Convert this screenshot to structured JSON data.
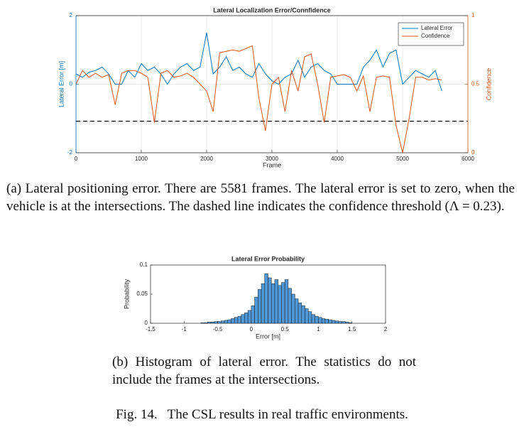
{
  "chart_data": [
    {
      "type": "line",
      "title": "Lateral Localization Error/Connfidence",
      "xlabel": "Frame",
      "ylabel": "Lateral Error [m]",
      "y2label": "Confidence",
      "xlim": [
        0,
        6000
      ],
      "xticks": [
        0,
        1000,
        2000,
        3000,
        4000,
        5000,
        6000
      ],
      "ylim": [
        -2,
        2
      ],
      "yticks": [
        -2,
        0,
        2
      ],
      "y2lim": [
        0,
        1
      ],
      "y2ticks": [
        0,
        0.5,
        1
      ],
      "grid": true,
      "legend": "northeast",
      "threshold": 0.23,
      "x": [
        0,
        100,
        200,
        300,
        400,
        500,
        600,
        700,
        800,
        900,
        1000,
        1100,
        1200,
        1300,
        1400,
        1500,
        1600,
        1700,
        1800,
        1900,
        2000,
        2100,
        2200,
        2300,
        2400,
        2500,
        2600,
        2700,
        2800,
        2900,
        3000,
        3100,
        3200,
        3300,
        3400,
        3500,
        3600,
        3700,
        3800,
        3900,
        4000,
        4100,
        4200,
        4300,
        4400,
        4500,
        4600,
        4700,
        4800,
        4900,
        5000,
        5100,
        5200,
        5300,
        5400,
        5500,
        5600
      ],
      "series": [
        {
          "name": "Lateral Error",
          "color": "#0072bd",
          "values": [
            0.3,
            0.2,
            0.35,
            0.4,
            0.5,
            0.3,
            0,
            0,
            0.4,
            0.2,
            0.6,
            0.4,
            0.5,
            0.3,
            0,
            0.3,
            0.5,
            0.6,
            0.4,
            0.5,
            1.5,
            0.3,
            0.5,
            0.8,
            0.4,
            0.5,
            0.3,
            0.2,
            0.6,
            0.3,
            0.1,
            0,
            0.2,
            0.3,
            0.7,
            0.2,
            0.5,
            0.6,
            0.4,
            0.3,
            0,
            0,
            0,
            0,
            0.5,
            0.7,
            1.0,
            0.5,
            0.9,
            1.0,
            0,
            0.2,
            0.4,
            0.3,
            0.2,
            0.4,
            -0.2
          ]
        },
        {
          "name": "Confidence",
          "color": "#d95319",
          "axis": "y2",
          "values": [
            0.5,
            0.6,
            0.55,
            0.58,
            0.55,
            0.57,
            0.35,
            0.58,
            0.6,
            0.6,
            0.58,
            0.55,
            0.22,
            0.58,
            0.6,
            0.55,
            0.56,
            0.58,
            0.55,
            0.5,
            0.45,
            0.3,
            0.73,
            0.74,
            0.75,
            0.74,
            0.76,
            0.78,
            0.4,
            0.16,
            0.5,
            0.55,
            0.3,
            0.6,
            0.45,
            0.7,
            0.72,
            0.5,
            0.22,
            0.55,
            0.56,
            0.57,
            0.55,
            0.45,
            0.56,
            0.3,
            0.55,
            0.56,
            0.55,
            0.2,
            0.0,
            0.25,
            0.55,
            0.55,
            0.53,
            0.54,
            0.53
          ]
        }
      ]
    },
    {
      "type": "histogram",
      "title": "Lateral Error Probability",
      "xlabel": "Error [m]",
      "ylabel": "Probability",
      "color": "#4f97d6",
      "xlim": [
        -1.5,
        2
      ],
      "xticks": [
        -1.5,
        -1,
        -0.5,
        0,
        0.5,
        1,
        1.5,
        2
      ],
      "ylim": [
        0,
        0.1
      ],
      "yticks": [
        0,
        0.05,
        0.1
      ],
      "bins": [
        -0.75,
        -0.7,
        -0.65,
        -0.6,
        -0.55,
        -0.5,
        -0.45,
        -0.4,
        -0.35,
        -0.3,
        -0.25,
        -0.2,
        -0.15,
        -0.1,
        -0.05,
        0,
        0.05,
        0.1,
        0.15,
        0.2,
        0.25,
        0.3,
        0.35,
        0.4,
        0.45,
        0.5,
        0.55,
        0.6,
        0.65,
        0.7,
        0.75,
        0.8,
        0.85,
        0.9,
        0.95,
        1,
        1.05,
        1.1,
        1.15,
        1.2,
        1.25,
        1.3,
        1.35,
        1.4,
        1.45,
        1.5
      ],
      "values": [
        0.001,
        0.001,
        0.002,
        0.002,
        0.003,
        0.003,
        0.004,
        0.005,
        0.006,
        0.008,
        0.01,
        0.012,
        0.015,
        0.018,
        0.022,
        0.03,
        0.045,
        0.058,
        0.068,
        0.085,
        0.078,
        0.068,
        0.075,
        0.065,
        0.07,
        0.075,
        0.06,
        0.05,
        0.042,
        0.035,
        0.03,
        0.025,
        0.02,
        0.015,
        0.012,
        0.01,
        0.008,
        0.007,
        0.006,
        0.005,
        0.004,
        0.003,
        0.003,
        0.002,
        0.001
      ]
    }
  ],
  "captions": {
    "a": "(a) Lateral positioning error. There are 5581 frames. The lateral error is set to zero, when the vehicle is at the intersections. The dashed line indicates the confidence threshold (Λ = 0.23).",
    "b": "(b) Histogram of lateral error. The statistics do not include the frames at the intersections.",
    "fig": "Fig. 14.   The CSL results in real traffic environments."
  }
}
